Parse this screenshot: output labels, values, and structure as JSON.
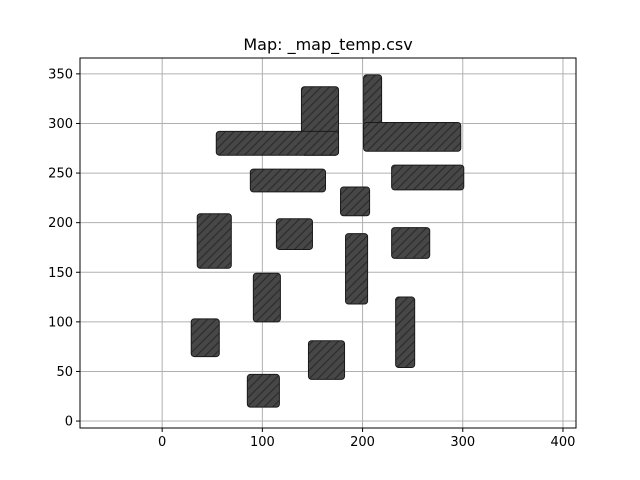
{
  "chart_data": {
    "type": "map",
    "title": "Map: _map_temp.csv",
    "xlabel": "",
    "ylabel": "",
    "xlim": [
      -82,
      413
    ],
    "ylim": [
      -7,
      366
    ],
    "xticks": [
      0,
      100,
      200,
      300,
      400
    ],
    "yticks": [
      0,
      50,
      100,
      150,
      200,
      250,
      300,
      350
    ],
    "grid": true,
    "obstacle_style": {
      "fill": "#444444",
      "hatch": "////",
      "edge": "#1a1a1a"
    },
    "obstacles": [
      {
        "x0": 139,
        "x1": 176,
        "y0": 268,
        "y1": 337
      },
      {
        "x0": 54,
        "x1": 176,
        "y0": 268,
        "y1": 292
      },
      {
        "x0": 201,
        "x1": 219,
        "y0": 274,
        "y1": 349
      },
      {
        "x0": 201,
        "x1": 298,
        "y0": 272,
        "y1": 301
      },
      {
        "x0": 88,
        "x1": 163,
        "y0": 231,
        "y1": 254
      },
      {
        "x0": 229,
        "x1": 301,
        "y0": 233,
        "y1": 258
      },
      {
        "x0": 178,
        "x1": 207,
        "y0": 207,
        "y1": 236
      },
      {
        "x0": 35,
        "x1": 69,
        "y0": 154,
        "y1": 209
      },
      {
        "x0": 114,
        "x1": 150,
        "y0": 173,
        "y1": 204
      },
      {
        "x0": 229,
        "x1": 267,
        "y0": 164,
        "y1": 195
      },
      {
        "x0": 183,
        "x1": 205,
        "y0": 118,
        "y1": 189
      },
      {
        "x0": 91,
        "x1": 118,
        "y0": 100,
        "y1": 149
      },
      {
        "x0": 29,
        "x1": 57,
        "y0": 65,
        "y1": 103
      },
      {
        "x0": 233,
        "x1": 252,
        "y0": 54,
        "y1": 125
      },
      {
        "x0": 146,
        "x1": 182,
        "y0": 42,
        "y1": 81
      },
      {
        "x0": 85,
        "x1": 117,
        "y0": 14,
        "y1": 47
      }
    ]
  }
}
